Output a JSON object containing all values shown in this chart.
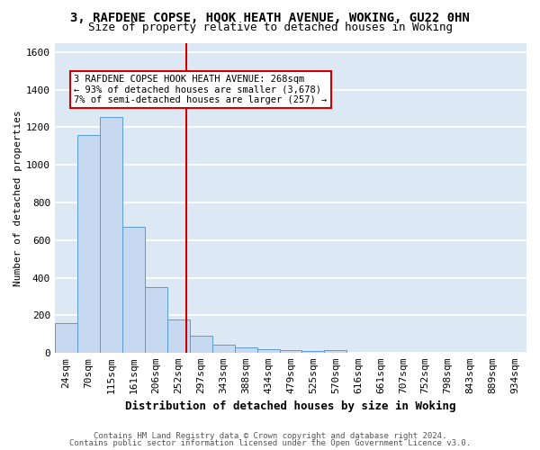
{
  "title": "3, RAFDENE COPSE, HOOK HEATH AVENUE, WOKING, GU22 0HN",
  "subtitle": "Size of property relative to detached houses in Woking",
  "xlabel": "Distribution of detached houses by size in Woking",
  "ylabel": "Number of detached properties",
  "categories": [
    "24sqm",
    "70sqm",
    "115sqm",
    "161sqm",
    "206sqm",
    "252sqm",
    "297sqm",
    "343sqm",
    "388sqm",
    "434sqm",
    "479sqm",
    "525sqm",
    "570sqm",
    "616sqm",
    "661sqm",
    "707sqm",
    "752sqm",
    "798sqm",
    "843sqm",
    "889sqm",
    "934sqm"
  ],
  "values": [
    160,
    1160,
    1255,
    670,
    350,
    180,
    90,
    45,
    30,
    20,
    15,
    10,
    15,
    0,
    0,
    0,
    0,
    0,
    0,
    0,
    0
  ],
  "bar_color": "#c6d9f0",
  "bar_edge_color": "#5b9bd5",
  "vline_color": "#cc0000",
  "annotation_line1": "3 RAFDENE COPSE HOOK HEATH AVENUE: 268sqm",
  "annotation_line2": "← 93% of detached houses are smaller (3,678)",
  "annotation_line3": "7% of semi-detached houses are larger (257) →",
  "annotation_box_color": "white",
  "annotation_box_edge_color": "#cc0000",
  "ylim": [
    0,
    1650
  ],
  "yticks": [
    0,
    200,
    400,
    600,
    800,
    1000,
    1200,
    1400,
    1600
  ],
  "footer_line1": "Contains HM Land Registry data © Crown copyright and database right 2024.",
  "footer_line2": "Contains public sector information licensed under the Open Government Licence v3.0.",
  "plot_bg_color": "#dce9f5",
  "fig_bg_color": "#ffffff",
  "grid_color": "#ffffff",
  "title_fontsize": 10,
  "subtitle_fontsize": 9,
  "ylabel_fontsize": 8,
  "xlabel_fontsize": 9,
  "tick_fontsize": 8,
  "annot_fontsize": 7.5,
  "footer_fontsize": 6.5
}
